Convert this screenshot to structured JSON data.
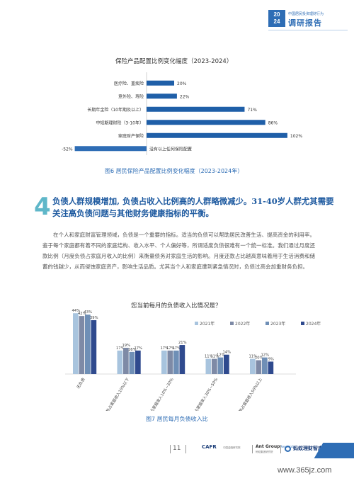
{
  "header": {
    "year_top": "20",
    "year_bottom": "24",
    "small_line": "中国居民投资理财行为",
    "big_line": "调研报告"
  },
  "chart1": {
    "title": "保险产品配置比例变化幅度（2023-2024）",
    "caption": "图6 居民保险产品配置比例变化幅度（2023-2024年）",
    "bar_color": "#1f5fa8",
    "neg_color": "#2e6db5"
  },
  "chart2": {
    "title": "您当前每月的负债收入比情况是？",
    "caption": "图7 居民每月负债收入比",
    "colors": [
      "#a8c4de",
      "#7e8aa6",
      "#6f8fb6",
      "#2f4a8e"
    ]
  },
  "chart_data": [
    {
      "type": "bar",
      "orientation": "horizontal",
      "title": "保险产品配置比例变化幅度（2023-2024）",
      "categories": [
        "医疗险、重疾险",
        "意外险、寿险",
        "长期年金险（10年期及以上）",
        "中短期理财险（3-10年）",
        "家庭财产保险",
        "没有以上任何保险配置"
      ],
      "values": [
        20,
        22,
        71,
        86,
        102,
        -52
      ],
      "value_labels": [
        "20%",
        "22%",
        "71%",
        "86%",
        "102%",
        "-52%"
      ]
    },
    {
      "type": "bar",
      "title": "您当前每月的负债收入比情况是？",
      "categories": [
        "无负债",
        "每月还款占家庭收入10%以下",
        "每月还款占家庭收入10%~30%",
        "每月还款占家庭收入30%~50%",
        "每月还款占家庭收入50%以上"
      ],
      "series": [
        {
          "name": "2021年",
          "values": [
            44,
            17,
            17,
            11,
            11
          ],
          "labels": [
            "44%",
            "17%",
            "17%",
            "11%",
            "11%"
          ]
        },
        {
          "name": "2022年",
          "values": [
            42,
            19,
            17,
            11,
            10
          ],
          "labels": [
            "42%",
            "19%",
            "17%",
            "11%",
            "10%"
          ]
        },
        {
          "name": "2023年",
          "values": [
            43,
            16,
            17,
            12,
            12
          ],
          "labels": [
            "43%",
            "16%",
            "17%",
            "12%",
            "12%"
          ]
        },
        {
          "name": "2024年",
          "values": [
            39,
            17,
            21,
            14,
            9
          ],
          "labels": [
            "39%",
            "17%",
            "21%",
            "14%",
            "9%"
          ]
        }
      ],
      "legend_position": "top-right"
    }
  ],
  "section": {
    "number": "4",
    "title": "负债人群规模增加, 负债占收入比例高的人群略微减少。31-40岁人群尤其需要关注高负债问题与其他财务健康指标的平衡。",
    "body": "在个人和家庭财富管理领域，负债是一个重要的指标。适当的负债可以帮助居民改善生活、提高资金的利用率。鉴于每个家庭都有着不同的家庭结构、收入水平、个人偏好等，所谓适度负债很难有一个统一标准。我们通过月度还款比例（月度负债占家庭月收入的比例）来衡量债务对家庭生活的影响。月度还款占比越高意味着用于生活消费和储蓄的钱越少，从而侵蚀家庭资产，影响生活品质。尤其当个人和家庭遭到紧急情况时，负债过高会加重财务负担。"
  },
  "footer": {
    "page_number": "11",
    "logo1": "CAFR",
    "logo1_sub": "中国金融研究院",
    "logo2": "Ant Group",
    "logo2_suffix": "Research",
    "logo2_sub": "蚂蚁集团研究院",
    "logo3": "蚂蚁理财智库",
    "watermark": "www.365jz.com"
  }
}
